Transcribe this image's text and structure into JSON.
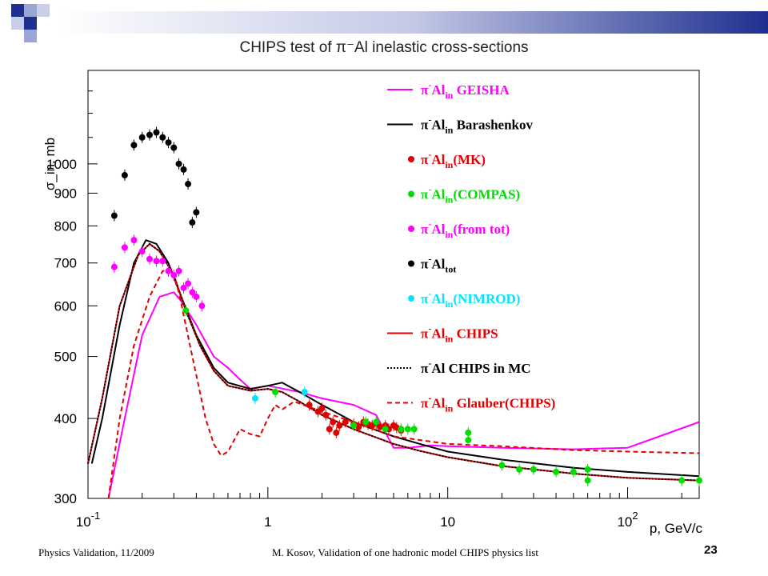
{
  "slide": {
    "title": "CHIPS test of π⁻Al inelastic cross-sections",
    "footer_left": "Physics Validation, 11/2009",
    "footer_center": "M. Kosov,  Validation of one hadronic model CHIPS physics list",
    "page_number": "23"
  },
  "colors": {
    "accent_blue": "#1f2f8f",
    "accent_light": "#9aa5d6",
    "magenta": "#ff00ff",
    "black": "#000000",
    "red": "#e00000",
    "green": "#00dd00",
    "cyan": "#00e5ff"
  },
  "chart_data": {
    "type": "line",
    "xlabel": "p, GeV/c",
    "ylabel": "σ_in, mb",
    "x_scale": "log",
    "y_scale": "log",
    "xlim": [
      0.1,
      250
    ],
    "ylim": [
      300,
      1400
    ],
    "x_ticks": [
      0.1,
      1,
      10,
      100
    ],
    "x_tick_labels": [
      {
        "base": "10",
        "exp": "-1"
      },
      {
        "base": "1",
        "exp": ""
      },
      {
        "base": "10",
        "exp": ""
      },
      {
        "base": "10",
        "exp": "2"
      }
    ],
    "y_ticks": [
      300,
      400,
      500,
      600,
      700,
      800,
      900,
      1000
    ],
    "y_tick_labels": [
      "300",
      "400",
      "500",
      "600",
      "700",
      "800",
      "900",
      "1000"
    ],
    "grid": false,
    "legend_position": "top-right",
    "series": [
      {
        "name": "π⁻Al_in GEISHA",
        "kind": "line",
        "style": "solid",
        "color": "#ff00ff",
        "points": [
          [
            0.13,
            300
          ],
          [
            0.16,
            400
          ],
          [
            0.2,
            540
          ],
          [
            0.25,
            620
          ],
          [
            0.3,
            630
          ],
          [
            0.33,
            610
          ],
          [
            0.4,
            560
          ],
          [
            0.5,
            500
          ],
          [
            0.6,
            480
          ],
          [
            0.7,
            460
          ],
          [
            0.8,
            445
          ],
          [
            1.0,
            450
          ],
          [
            1.5,
            440
          ],
          [
            2.0,
            430
          ],
          [
            3.0,
            420
          ],
          [
            4.0,
            405
          ],
          [
            5.0,
            360
          ],
          [
            6.0,
            360
          ],
          [
            8.0,
            363
          ],
          [
            10,
            362
          ],
          [
            20,
            360
          ],
          [
            50,
            358
          ],
          [
            100,
            360
          ],
          [
            150,
            375
          ],
          [
            250,
            395
          ]
        ]
      },
      {
        "name": "π⁻Al_in Barashenkov",
        "kind": "line",
        "style": "solid",
        "color": "#000000",
        "points": [
          [
            0.105,
            340
          ],
          [
            0.12,
            400
          ],
          [
            0.15,
            560
          ],
          [
            0.18,
            700
          ],
          [
            0.21,
            760
          ],
          [
            0.24,
            750
          ],
          [
            0.28,
            700
          ],
          [
            0.33,
            620
          ],
          [
            0.4,
            540
          ],
          [
            0.5,
            480
          ],
          [
            0.6,
            455
          ],
          [
            0.8,
            445
          ],
          [
            1.0,
            450
          ],
          [
            1.2,
            455
          ],
          [
            1.5,
            440
          ],
          [
            2.0,
            420
          ],
          [
            3.0,
            395
          ],
          [
            5.0,
            375
          ],
          [
            7.0,
            365
          ],
          [
            10,
            355
          ],
          [
            20,
            345
          ],
          [
            50,
            335
          ],
          [
            100,
            330
          ],
          [
            250,
            325
          ]
        ]
      },
      {
        "name": "π⁻Al_in CHIPS",
        "kind": "line",
        "style": "solid",
        "color": "#e00000",
        "points": [
          [
            0.1,
            340
          ],
          [
            0.12,
            430
          ],
          [
            0.15,
            600
          ],
          [
            0.19,
            720
          ],
          [
            0.22,
            750
          ],
          [
            0.25,
            730
          ],
          [
            0.3,
            670
          ],
          [
            0.35,
            590
          ],
          [
            0.42,
            520
          ],
          [
            0.5,
            475
          ],
          [
            0.6,
            450
          ],
          [
            0.8,
            442
          ],
          [
            1.0,
            445
          ],
          [
            1.2,
            440
          ],
          [
            1.5,
            425
          ],
          [
            2.0,
            405
          ],
          [
            3.0,
            385
          ],
          [
            5.0,
            365
          ],
          [
            7.0,
            356
          ],
          [
            10,
            348
          ],
          [
            20,
            337
          ],
          [
            50,
            328
          ],
          [
            100,
            323
          ],
          [
            250,
            320
          ]
        ]
      },
      {
        "name": "π⁻Al CHIPS in MC",
        "kind": "line",
        "style": "dotted",
        "color": "#000000",
        "points": [
          [
            0.1,
            340
          ],
          [
            0.12,
            430
          ],
          [
            0.15,
            600
          ],
          [
            0.19,
            720
          ],
          [
            0.22,
            750
          ],
          [
            0.25,
            730
          ],
          [
            0.3,
            670
          ],
          [
            0.35,
            590
          ],
          [
            0.42,
            520
          ],
          [
            0.5,
            475
          ],
          [
            0.6,
            450
          ],
          [
            0.8,
            442
          ],
          [
            1.0,
            445
          ],
          [
            1.2,
            440
          ],
          [
            1.5,
            425
          ],
          [
            2.0,
            405
          ],
          [
            3.0,
            385
          ],
          [
            5.0,
            365
          ],
          [
            7.0,
            356
          ],
          [
            10,
            348
          ],
          [
            20,
            337
          ],
          [
            50,
            328
          ],
          [
            100,
            323
          ],
          [
            250,
            320
          ]
        ]
      },
      {
        "name": "π⁻Al_in Glauber(CHIPS)",
        "kind": "line",
        "style": "dashed",
        "color": "#e00000",
        "points": [
          [
            0.13,
            300
          ],
          [
            0.15,
            400
          ],
          [
            0.18,
            520
          ],
          [
            0.22,
            620
          ],
          [
            0.26,
            680
          ],
          [
            0.29,
            685
          ],
          [
            0.32,
            630
          ],
          [
            0.38,
            500
          ],
          [
            0.45,
            400
          ],
          [
            0.5,
            365
          ],
          [
            0.55,
            350
          ],
          [
            0.6,
            355
          ],
          [
            0.7,
            385
          ],
          [
            0.8,
            378
          ],
          [
            0.9,
            375
          ],
          [
            1.0,
            400
          ],
          [
            1.1,
            420
          ],
          [
            1.2,
            413
          ],
          [
            1.4,
            425
          ],
          [
            2.0,
            410
          ],
          [
            3.0,
            395
          ],
          [
            5.0,
            375
          ],
          [
            10,
            365
          ],
          [
            20,
            362
          ],
          [
            50,
            357
          ],
          [
            100,
            355
          ],
          [
            250,
            353
          ]
        ]
      },
      {
        "name": "π⁻Al_in(MK)",
        "kind": "scatter",
        "color": "#e00000",
        "points": [
          [
            1.7,
            420
          ],
          [
            1.9,
            410
          ],
          [
            2.0,
            415
          ],
          [
            2.1,
            405
          ],
          [
            2.3,
            395
          ],
          [
            2.5,
            390
          ],
          [
            2.7,
            395
          ],
          [
            3.0,
            392
          ],
          [
            3.2,
            388
          ],
          [
            3.4,
            395
          ],
          [
            3.6,
            392
          ],
          [
            3.8,
            390
          ],
          [
            4.0,
            393
          ],
          [
            4.2,
            388
          ],
          [
            4.5,
            390
          ],
          [
            4.7,
            385
          ],
          [
            5.0,
            390
          ],
          [
            5.2,
            387
          ],
          [
            5.5,
            383
          ],
          [
            2.4,
            380
          ],
          [
            2.2,
            385
          ]
        ]
      },
      {
        "name": "π⁻Al_in(COMPAS)",
        "kind": "scatter",
        "color": "#00dd00",
        "points": [
          [
            0.35,
            590
          ],
          [
            1.1,
            440
          ],
          [
            3.0,
            390
          ],
          [
            3.5,
            395
          ],
          [
            4.0,
            395
          ],
          [
            4.5,
            385
          ],
          [
            5.5,
            385
          ],
          [
            6.0,
            385
          ],
          [
            6.5,
            385
          ],
          [
            13,
            380
          ],
          [
            13,
            370
          ],
          [
            20,
            338
          ],
          [
            25,
            333
          ],
          [
            30,
            333
          ],
          [
            40,
            330
          ],
          [
            50,
            330
          ],
          [
            60,
            333
          ],
          [
            60,
            320
          ],
          [
            200,
            320
          ],
          [
            250,
            320
          ]
        ]
      },
      {
        "name": "π⁻Al_in(from tot)",
        "kind": "scatter",
        "color": "#ff00ff",
        "points": [
          [
            0.14,
            690
          ],
          [
            0.16,
            740
          ],
          [
            0.18,
            760
          ],
          [
            0.2,
            730
          ],
          [
            0.22,
            710
          ],
          [
            0.24,
            705
          ],
          [
            0.26,
            705
          ],
          [
            0.28,
            680
          ],
          [
            0.3,
            670
          ],
          [
            0.32,
            680
          ],
          [
            0.34,
            640
          ],
          [
            0.36,
            650
          ],
          [
            0.38,
            630
          ],
          [
            0.4,
            620
          ],
          [
            0.43,
            600
          ]
        ]
      },
      {
        "name": "π⁻Al_tot",
        "kind": "scatter",
        "color": "#000000",
        "points": [
          [
            0.14,
            830
          ],
          [
            0.16,
            960
          ],
          [
            0.18,
            1070
          ],
          [
            0.2,
            1100
          ],
          [
            0.22,
            1110
          ],
          [
            0.24,
            1120
          ],
          [
            0.26,
            1100
          ],
          [
            0.28,
            1080
          ],
          [
            0.3,
            1060
          ],
          [
            0.32,
            1000
          ],
          [
            0.34,
            980
          ],
          [
            0.36,
            930
          ],
          [
            0.38,
            810
          ],
          [
            0.4,
            840
          ]
        ]
      },
      {
        "name": "π⁻Al_in(NIMROD)",
        "kind": "scatter",
        "color": "#00e5ff",
        "points": [
          [
            0.85,
            430
          ],
          [
            1.6,
            440
          ]
        ]
      }
    ],
    "legend": [
      {
        "kind": "line",
        "style": "solid",
        "color": "#ff00ff",
        "pre": "π",
        "sup": "-",
        "base": "Al",
        "sub": "in",
        "post": " GEISHA"
      },
      {
        "kind": "line",
        "style": "solid",
        "color": "#000000",
        "pre": "π",
        "sup": "-",
        "base": "Al",
        "sub": "in",
        "post": " Barashenkov"
      },
      {
        "kind": "marker",
        "color": "#e00000",
        "pre": "π",
        "sup": "-",
        "base": "Al",
        "sub": "in",
        "post": "(MK)"
      },
      {
        "kind": "marker",
        "color": "#00dd00",
        "pre": "π",
        "sup": "-",
        "base": "Al",
        "sub": "in",
        "post": "(COMPAS)"
      },
      {
        "kind": "marker",
        "color": "#ff00ff",
        "pre": "π",
        "sup": "-",
        "base": "Al",
        "sub": "in",
        "post": "(from tot)"
      },
      {
        "kind": "marker",
        "color": "#000000",
        "pre": "π",
        "sup": "-",
        "base": "Al",
        "sub": "tot",
        "post": ""
      },
      {
        "kind": "marker",
        "color": "#00e5ff",
        "pre": "π",
        "sup": "-",
        "base": "Al",
        "sub": "in",
        "post": "(NIMROD)"
      },
      {
        "kind": "line",
        "style": "solid",
        "color": "#e00000",
        "pre": "π",
        "sup": "-",
        "base": "Al",
        "sub": "in",
        "post": " CHIPS"
      },
      {
        "kind": "line",
        "style": "dotted",
        "color": "#000000",
        "pre": "π",
        "sup": "-",
        "base": "Al",
        "sub": "",
        "post": " CHIPS in MC"
      },
      {
        "kind": "line",
        "style": "dashed",
        "color": "#e00000",
        "pre": "π",
        "sup": "-",
        "base": "Al",
        "sub": "in",
        "post": " Glauber(CHIPS)"
      }
    ]
  }
}
